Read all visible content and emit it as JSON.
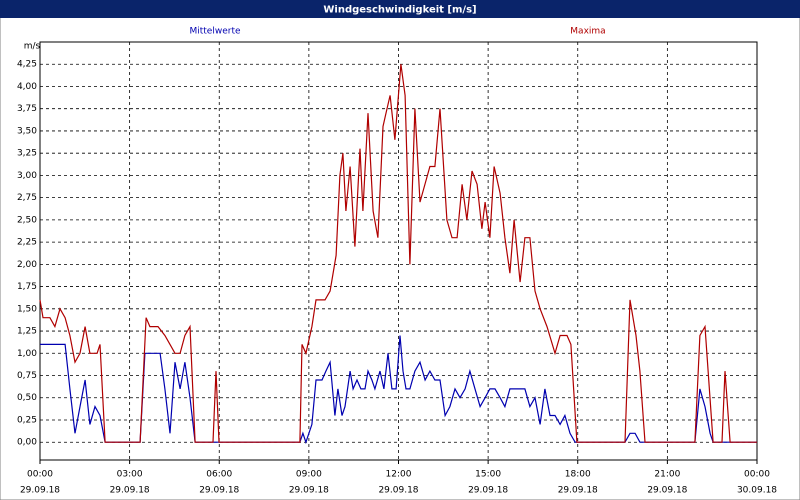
{
  "chart_data": {
    "type": "line",
    "title": "Windgeschwindigkeit [m/s]",
    "y_unit": "m/s",
    "xlim": [
      0,
      24
    ],
    "xticks": [
      {
        "value": 0,
        "label": "00:00",
        "sublabel": "29.09.18"
      },
      {
        "value": 3,
        "label": "03:00",
        "sublabel": "29.09.18"
      },
      {
        "value": 6,
        "label": "06:00",
        "sublabel": "29.09.18"
      },
      {
        "value": 9,
        "label": "09:00",
        "sublabel": "29.09.18"
      },
      {
        "value": 12,
        "label": "12:00",
        "sublabel": "29.09.18"
      },
      {
        "value": 15,
        "label": "15:00",
        "sublabel": "29.09.18"
      },
      {
        "value": 18,
        "label": "18:00",
        "sublabel": "29.09.18"
      },
      {
        "value": 21,
        "label": "21:00",
        "sublabel": "29.09.18"
      },
      {
        "value": 24,
        "label": "00:00",
        "sublabel": "30.09.18"
      }
    ],
    "ylim": [
      -0.2,
      4.5
    ],
    "yticks": [
      {
        "value": 0,
        "label": "0,00"
      },
      {
        "value": 0.25,
        "label": "0,25"
      },
      {
        "value": 0.5,
        "label": "0,50"
      },
      {
        "value": 0.75,
        "label": "0,75"
      },
      {
        "value": 1,
        "label": "1,00"
      },
      {
        "value": 1.25,
        "label": "1,25"
      },
      {
        "value": 1.5,
        "label": "1,50"
      },
      {
        "value": 1.75,
        "label": "1,75"
      },
      {
        "value": 2,
        "label": "2,00"
      },
      {
        "value": 2.25,
        "label": "2,25"
      },
      {
        "value": 2.5,
        "label": "2,50"
      },
      {
        "value": 2.75,
        "label": "2,75"
      },
      {
        "value": 3,
        "label": "3,00"
      },
      {
        "value": 3.25,
        "label": "3,25"
      },
      {
        "value": 3.5,
        "label": "3,50"
      },
      {
        "value": 3.75,
        "label": "3,75"
      },
      {
        "value": 4,
        "label": "4,00"
      },
      {
        "value": 4.25,
        "label": "4,25"
      }
    ],
    "grid": true,
    "series": [
      {
        "name": "Mittelwerte",
        "color": "#0000b0",
        "x": [
          0,
          0.84,
          1.0,
          1.17,
          1.34,
          1.51,
          1.67,
          1.84,
          2.01,
          2.18,
          3.35,
          3.51,
          4.02,
          4.18,
          4.35,
          4.52,
          4.69,
          4.85,
          5.02,
          5.19,
          8.7,
          8.8,
          8.9,
          9.1,
          9.24,
          9.44,
          9.57,
          9.71,
          9.87,
          9.97,
          10.11,
          10.21,
          10.38,
          10.48,
          10.61,
          10.74,
          10.88,
          10.98,
          11.11,
          11.21,
          11.38,
          11.51,
          11.65,
          11.78,
          11.92,
          12.05,
          12.15,
          12.25,
          12.38,
          12.55,
          12.72,
          12.89,
          13.05,
          13.22,
          13.39,
          13.56,
          13.72,
          13.89,
          14.06,
          14.23,
          14.39,
          14.56,
          14.73,
          14.9,
          15.06,
          15.23,
          15.4,
          15.56,
          15.73,
          15.9,
          16.07,
          16.23,
          16.4,
          16.57,
          16.74,
          16.9,
          17.07,
          17.24,
          17.41,
          17.57,
          17.74,
          17.91,
          19.58,
          19.75,
          19.92,
          20.08,
          21.92,
          22.09,
          22.26,
          22.43,
          22.53,
          24
        ],
        "values": [
          1.1,
          1.1,
          0.6,
          0.1,
          0.4,
          0.7,
          0.2,
          0.4,
          0.3,
          0,
          0,
          1.0,
          1.0,
          0.6,
          0.1,
          0.9,
          0.6,
          0.9,
          0.5,
          0,
          0,
          0.1,
          0,
          0.2,
          0.7,
          0.7,
          0.8,
          0.9,
          0.3,
          0.6,
          0.3,
          0.4,
          0.8,
          0.6,
          0.7,
          0.6,
          0.6,
          0.8,
          0.7,
          0.6,
          0.8,
          0.6,
          1.0,
          0.6,
          0.6,
          1.2,
          0.8,
          0.6,
          0.6,
          0.8,
          0.9,
          0.7,
          0.8,
          0.7,
          0.7,
          0.3,
          0.4,
          0.6,
          0.5,
          0.6,
          0.8,
          0.6,
          0.4,
          0.5,
          0.6,
          0.6,
          0.5,
          0.4,
          0.6,
          0.6,
          0.6,
          0.6,
          0.4,
          0.5,
          0.2,
          0.6,
          0.3,
          0.3,
          0.2,
          0.3,
          0.1,
          0,
          0,
          0.1,
          0.1,
          0,
          0,
          0.6,
          0.4,
          0.1,
          0,
          0
        ]
      },
      {
        "name": "Maxima",
        "color": "#b00000",
        "x": [
          0,
          0.1,
          0.33,
          0.5,
          0.67,
          0.84,
          1.0,
          1.17,
          1.34,
          1.51,
          1.67,
          1.91,
          2.01,
          2.18,
          3.35,
          3.55,
          3.68,
          3.95,
          4.18,
          4.35,
          4.52,
          4.69,
          4.85,
          5.02,
          5.19,
          5.79,
          5.89,
          5.99,
          8.7,
          8.77,
          8.9,
          9.1,
          9.24,
          9.54,
          9.71,
          9.91,
          10.04,
          10.14,
          10.24,
          10.38,
          10.54,
          10.71,
          10.81,
          10.98,
          11.15,
          11.31,
          11.48,
          11.58,
          11.72,
          11.88,
          12.08,
          12.22,
          12.38,
          12.55,
          12.72,
          13.05,
          13.22,
          13.39,
          13.62,
          13.79,
          13.96,
          14.13,
          14.29,
          14.46,
          14.63,
          14.79,
          14.9,
          15.06,
          15.2,
          15.4,
          15.56,
          15.73,
          15.87,
          16.07,
          16.23,
          16.4,
          16.57,
          16.74,
          16.97,
          17.24,
          17.41,
          17.64,
          17.77,
          17.97,
          19.58,
          19.75,
          19.95,
          20.08,
          20.25,
          21.92,
          22.09,
          22.26,
          22.53,
          22.83,
          22.93,
          23.1,
          24
        ],
        "values": [
          1.6,
          1.4,
          1.4,
          1.3,
          1.5,
          1.4,
          1.2,
          0.9,
          1.0,
          1.3,
          1.0,
          1.0,
          1.1,
          0,
          0,
          1.4,
          1.3,
          1.3,
          1.2,
          1.1,
          1.0,
          1.0,
          1.2,
          1.3,
          0,
          0,
          0.8,
          0,
          0,
          1.1,
          1.0,
          1.3,
          1.6,
          1.6,
          1.7,
          2.1,
          3.0,
          3.25,
          2.6,
          3.1,
          2.2,
          3.3,
          2.6,
          3.7,
          2.6,
          2.3,
          3.55,
          3.7,
          3.9,
          3.4,
          4.25,
          3.9,
          2.0,
          3.75,
          2.7,
          3.1,
          3.1,
          3.75,
          2.5,
          2.3,
          2.3,
          2.9,
          2.5,
          3.05,
          2.9,
          2.4,
          2.7,
          2.3,
          3.1,
          2.8,
          2.3,
          1.9,
          2.5,
          1.8,
          2.3,
          2.3,
          1.7,
          1.5,
          1.3,
          1.0,
          1.2,
          1.2,
          1.1,
          0,
          0,
          1.6,
          1.2,
          0.8,
          0,
          0,
          1.2,
          1.3,
          0,
          0,
          0.8,
          0,
          0
        ]
      }
    ]
  }
}
